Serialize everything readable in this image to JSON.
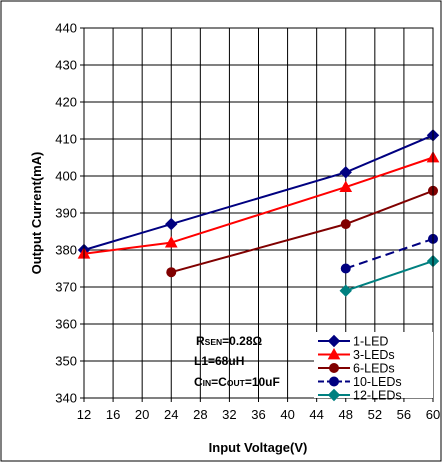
{
  "chart_data": {
    "type": "line",
    "xlabel": "Input Voltage(V)",
    "ylabel": "Output Current(mA)",
    "xlim": [
      12,
      60
    ],
    "ylim": [
      340,
      440
    ],
    "xticks": [
      "12",
      "16",
      "20",
      "24",
      "28",
      "32",
      "36",
      "40",
      "44",
      "48",
      "52",
      "56",
      "60"
    ],
    "yticks": [
      "340",
      "350",
      "360",
      "370",
      "380",
      "390",
      "400",
      "410",
      "420",
      "430",
      "440"
    ],
    "grid": true,
    "legend_position": "bottom-right",
    "series": [
      {
        "name": "1-LED",
        "color": "#000080",
        "marker": "diamond",
        "dashed_last_segment": false,
        "x": [
          12,
          24,
          48,
          60
        ],
        "y": [
          380,
          387,
          401,
          411
        ]
      },
      {
        "name": "3-LEDs",
        "color": "#ff0000",
        "marker": "triangle",
        "dashed_last_segment": false,
        "x": [
          12,
          24,
          48,
          60
        ],
        "y": [
          379,
          382,
          397,
          405
        ]
      },
      {
        "name": "6-LEDs",
        "color": "#800000",
        "marker": "circle",
        "dashed_last_segment": false,
        "x": [
          24,
          48,
          60
        ],
        "y": [
          374,
          387,
          396
        ]
      },
      {
        "name": "10-LEDs",
        "color": "#000080",
        "marker": "circle",
        "dashed_last_segment": true,
        "x": [
          48,
          60
        ],
        "y": [
          375,
          383
        ]
      },
      {
        "name": "12-LEDs",
        "color": "#008080",
        "marker": "diamond",
        "dashed_last_segment": false,
        "x": [
          48,
          60
        ],
        "y": [
          369,
          377
        ]
      }
    ],
    "annotations": [
      {
        "id": "rsen",
        "main1": "R",
        "sub1": "SEN",
        "rest": "=0.28Ω"
      },
      {
        "id": "l1",
        "text": "L1=68uH"
      },
      {
        "id": "cin",
        "main1": "C",
        "sub1": "IN",
        "mid": "=C",
        "sub2": "OUT",
        "rest": "=10uF"
      }
    ]
  }
}
